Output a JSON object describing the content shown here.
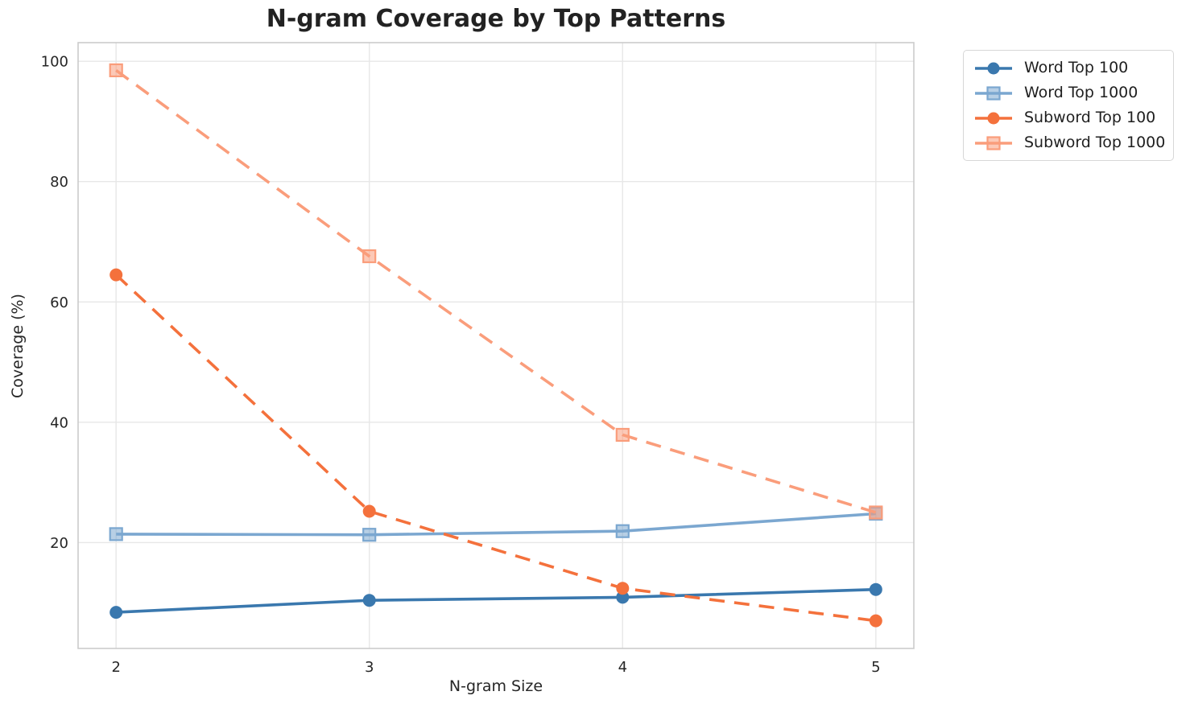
{
  "chart_data": {
    "type": "line",
    "title": "N-gram Coverage by Top Patterns",
    "xlabel": "N-gram Size",
    "ylabel": "Coverage (%)",
    "x": [
      2,
      3,
      4,
      5
    ],
    "xticks": [
      "2",
      "3",
      "4",
      "5"
    ],
    "yticks": [
      20,
      40,
      60,
      80,
      100
    ],
    "xlim": [
      1.85,
      5.15
    ],
    "ylim": [
      2.4,
      103.1
    ],
    "grid": true,
    "legend_position": "outside-upper-right",
    "series": [
      {
        "name": "Word Top 100",
        "values": [
          8.4,
          10.4,
          10.9,
          12.2
        ],
        "color": "#3a78ae",
        "marker": "circle",
        "linestyle": "solid"
      },
      {
        "name": "Word Top 1000",
        "values": [
          21.4,
          21.3,
          21.9,
          24.8
        ],
        "color": "#7ba7d0",
        "marker": "square",
        "linestyle": "solid"
      },
      {
        "name": "Subword Top 100",
        "values": [
          64.5,
          25.2,
          12.4,
          7.0
        ],
        "color": "#f4713c",
        "marker": "circle",
        "linestyle": "dashed"
      },
      {
        "name": "Subword Top 1000",
        "values": [
          98.5,
          67.6,
          37.9,
          25.0
        ],
        "color": "#fa9d7b",
        "marker": "square",
        "linestyle": "dashed"
      }
    ],
    "colors": {
      "background": "#ffffff",
      "grid": "#e7e7e7",
      "spine": "#cbcbcb",
      "text": "#262626",
      "title_text": "#222222"
    }
  }
}
